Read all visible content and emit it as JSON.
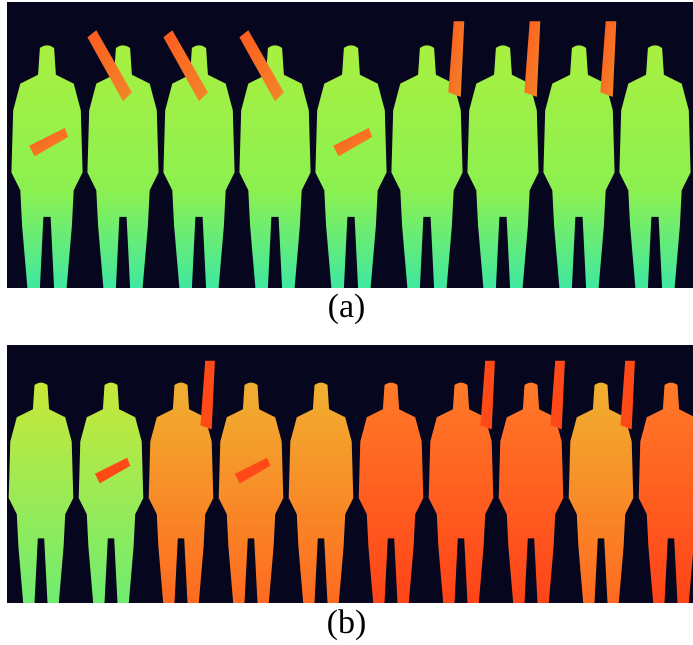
{
  "figure": {
    "captions": {
      "a": "(a)",
      "b": "(b)"
    },
    "colors": {
      "background": "#06061e",
      "depth_near": "#ff4a1a",
      "depth_mid": "#f0c030",
      "depth_far": "#9ef048",
      "depth_feet": "#3ce8a0"
    },
    "panel_a": {
      "description_icon": "depth-map-silhouettes-icon",
      "count": 9
    },
    "panel_b": {
      "description_icon": "depth-map-silhouettes-icon",
      "count": 10
    }
  }
}
